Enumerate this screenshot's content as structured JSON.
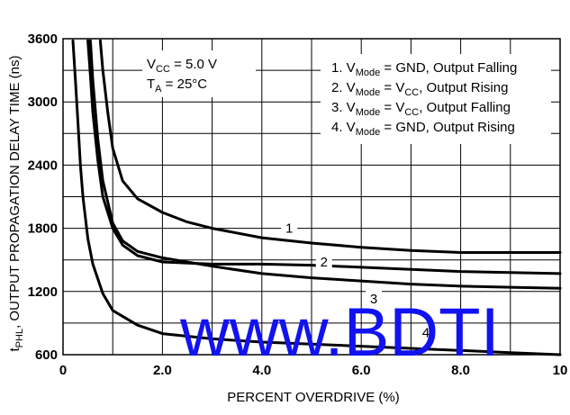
{
  "chart_data": {
    "type": "line",
    "title": "",
    "xlabel": "PERCENT OVERDRIVE (%)",
    "ylabel_sub": "PHL",
    "ylabel_prefix": "t",
    "ylabel_rest": ", OUTPUT PROPAGATION DELAY TIME (ns)",
    "xlim": [
      0,
      10
    ],
    "ylim": [
      600,
      3600
    ],
    "x_ticks": [
      "0",
      "2.0",
      "4.0",
      "6.0",
      "8.0",
      "10"
    ],
    "x_tick_values": [
      0,
      2,
      4,
      6,
      8,
      10
    ],
    "y_ticks": [
      "600",
      "1200",
      "1800",
      "2400",
      "3000",
      "3600"
    ],
    "y_tick_values": [
      600,
      1200,
      1800,
      2400,
      3000,
      3600
    ],
    "grid": true,
    "legend_position": "top-right",
    "conditions": {
      "vcc": {
        "base": "V",
        "sub": "CC",
        "rest": " = 5.0 V"
      },
      "ta": {
        "base": "T",
        "sub": "A",
        "rest": " = 25°C"
      }
    },
    "legend": [
      {
        "pre": "1. V",
        "sub": "Mode",
        "mid": " = GND, Output Falling",
        "sub2": "",
        "post": ""
      },
      {
        "pre": "2. V",
        "sub": "Mode",
        "mid": " = V",
        "sub2": "CC",
        "post": ", Output Rising"
      },
      {
        "pre": "3. V",
        "sub": "Mode",
        "mid": " = V",
        "sub2": "CC",
        "post": ", Output Falling"
      },
      {
        "pre": "4. V",
        "sub": "Mode",
        "mid": " = GND, Output Rising",
        "sub2": "",
        "post": ""
      }
    ],
    "series": [
      {
        "name": "1",
        "x": [
          0.75,
          0.8,
          0.9,
          1.0,
          1.2,
          1.5,
          2.0,
          2.5,
          3.0,
          4.0,
          5.0,
          6.0,
          7.0,
          8.0,
          9.0,
          10.0
        ],
        "y": [
          3580,
          3300,
          2900,
          2560,
          2250,
          2080,
          1950,
          1860,
          1800,
          1710,
          1660,
          1620,
          1590,
          1570,
          1570,
          1570
        ]
      },
      {
        "name": "2",
        "x": [
          0.5,
          0.55,
          0.6,
          0.7,
          0.8,
          1.0,
          1.2,
          1.5,
          2.0,
          3.0,
          4.0,
          5.0,
          6.0,
          7.0,
          8.0,
          9.0,
          10.0
        ],
        "y": [
          3580,
          3250,
          2900,
          2450,
          2100,
          1800,
          1640,
          1540,
          1480,
          1460,
          1460,
          1450,
          1430,
          1410,
          1390,
          1380,
          1370
        ]
      },
      {
        "name": "3",
        "x": [
          0.55,
          0.6,
          0.7,
          0.8,
          1.0,
          1.2,
          1.5,
          2.0,
          3.0,
          4.0,
          5.0,
          6.0,
          7.0,
          8.0,
          9.0,
          10.0
        ],
        "y": [
          3580,
          3200,
          2650,
          2250,
          1850,
          1680,
          1580,
          1520,
          1440,
          1370,
          1330,
          1300,
          1270,
          1250,
          1240,
          1230
        ]
      },
      {
        "name": "4",
        "x": [
          0.2,
          0.25,
          0.3,
          0.35,
          0.4,
          0.5,
          0.6,
          0.8,
          1.0,
          1.5,
          2.0,
          3.0,
          4.0,
          5.0,
          6.0,
          7.0,
          8.0,
          9.0,
          10.0
        ],
        "y": [
          3580,
          3200,
          2800,
          2400,
          2100,
          1700,
          1460,
          1180,
          1020,
          880,
          800,
          750,
          720,
          700,
          680,
          660,
          640,
          620,
          600
        ]
      }
    ],
    "curve_labels": [
      {
        "text": "1",
        "x": 4.55,
        "y": 1800
      },
      {
        "text": "2",
        "x": 5.25,
        "y": 1480
      },
      {
        "text": "3",
        "x": 6.25,
        "y": 1130
      },
      {
        "text": "4",
        "x": 7.3,
        "y": 810
      }
    ]
  },
  "watermark": "www.BDTI"
}
